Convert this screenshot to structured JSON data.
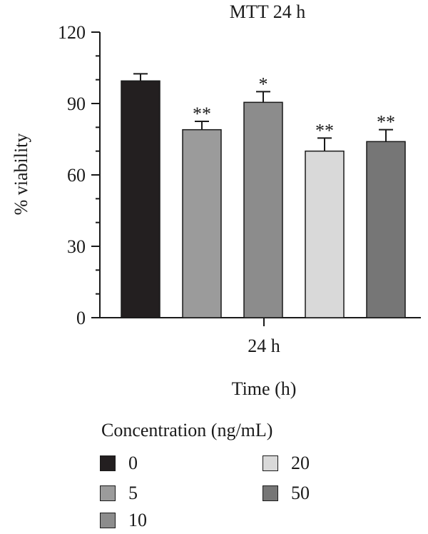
{
  "chart_data": {
    "type": "bar",
    "title": "MTT 24 h",
    "xlabel": "Time (h)",
    "ylabel": "% viability",
    "categories": [
      "24 h"
    ],
    "ylim": [
      0,
      120
    ],
    "yticks": [
      0,
      30,
      60,
      90,
      120
    ],
    "grid": false,
    "legend_title": "Concentration (ng/mL)",
    "legend_position": "bottom",
    "series": [
      {
        "name": "0",
        "values": [
          99.5
        ],
        "error": [
          3.0
        ],
        "significance": "",
        "color": "#231f20"
      },
      {
        "name": "5",
        "values": [
          79.0
        ],
        "error": [
          3.5
        ],
        "significance": "**",
        "color": "#9b9b9b"
      },
      {
        "name": "10",
        "values": [
          90.5
        ],
        "error": [
          4.5
        ],
        "significance": "*",
        "color": "#8c8c8c"
      },
      {
        "name": "20",
        "values": [
          70.0
        ],
        "error": [
          5.5
        ],
        "significance": "**",
        "color": "#d9d9d9"
      },
      {
        "name": "50",
        "values": [
          74.0
        ],
        "error": [
          5.0
        ],
        "significance": "**",
        "color": "#767676"
      }
    ]
  }
}
